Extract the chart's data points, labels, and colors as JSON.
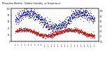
{
  "title_left": "Milwaukee Weather",
  "title_mid": "Outdoor Humidity",
  "title_right": "vs Temperature",
  "background_color": "#ffffff",
  "plot_bg_color": "#ffffff",
  "humidity_color": "#0000cc",
  "temp_color": "#cc0000",
  "dot_size": 0.4,
  "ylim_humidity": [
    0,
    100
  ],
  "ylim_temp": [
    -20,
    110
  ],
  "grid_color": "#dddddd",
  "bar_humidity_color": "#0000ff",
  "bar_temp_color": "#ff0000",
  "n_points": 800,
  "humidity_mean": 65,
  "humidity_amp": 22,
  "temp_mean": 15,
  "temp_amp": 12
}
